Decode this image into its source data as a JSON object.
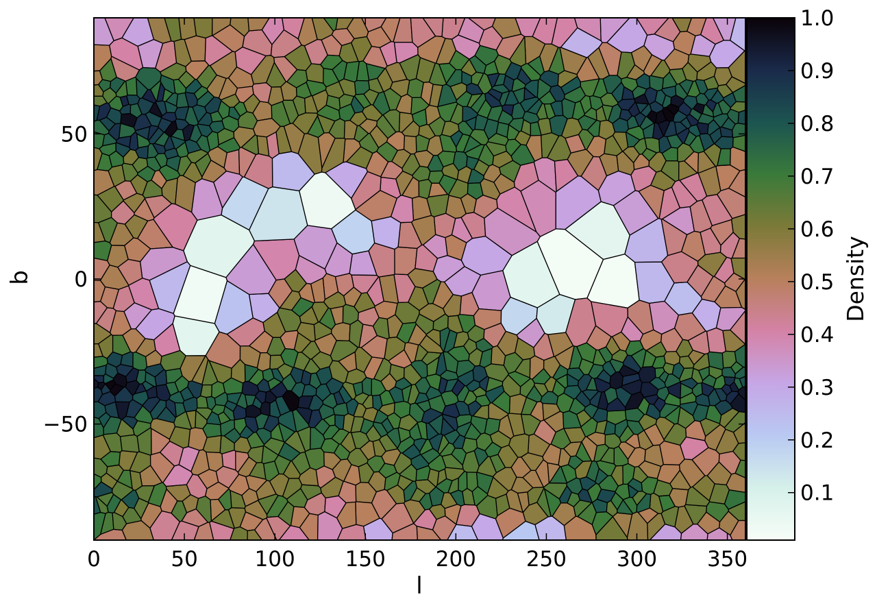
{
  "chart_data": {
    "type": "heatmap",
    "title": "",
    "xlabel": "l",
    "ylabel": "b",
    "xlim": [
      0,
      360
    ],
    "ylim": [
      -90,
      90
    ],
    "x_ticks": [
      0,
      50,
      100,
      150,
      200,
      250,
      300,
      350
    ],
    "x_tick_labels": [
      "0",
      "50",
      "100",
      "150",
      "200",
      "250",
      "300",
      "350"
    ],
    "y_ticks": [
      50,
      0,
      -50
    ],
    "y_tick_labels": [
      "50",
      "0",
      "−50"
    ],
    "grid": false,
    "colormap": "cubehelix_r",
    "colorbar": {
      "label": "Density",
      "range": [
        0.01,
        1.0
      ],
      "ticks": [
        0.1,
        0.2,
        0.3,
        0.4,
        0.5,
        0.6,
        0.7,
        0.8,
        0.9,
        1.0
      ],
      "tick_labels": [
        "0.1",
        "0.2",
        "0.3",
        "0.4",
        "0.5",
        "0.6",
        "0.7",
        "0.8",
        "0.9",
        "1.0"
      ],
      "position": "right"
    },
    "low_density_regions": [
      {
        "l": 120,
        "b": 28,
        "density": 0.02
      },
      {
        "l": 60,
        "b": 0,
        "density": 0.03
      },
      {
        "l": 290,
        "b": 8,
        "density": 0.04
      },
      {
        "l": 240,
        "b": 5,
        "density": 0.06
      }
    ],
    "high_density_bands": [
      {
        "b_center": 55,
        "density": 0.75
      },
      {
        "b_center": -40,
        "density": 0.8
      },
      {
        "b_center": -75,
        "density": 0.6
      }
    ]
  }
}
